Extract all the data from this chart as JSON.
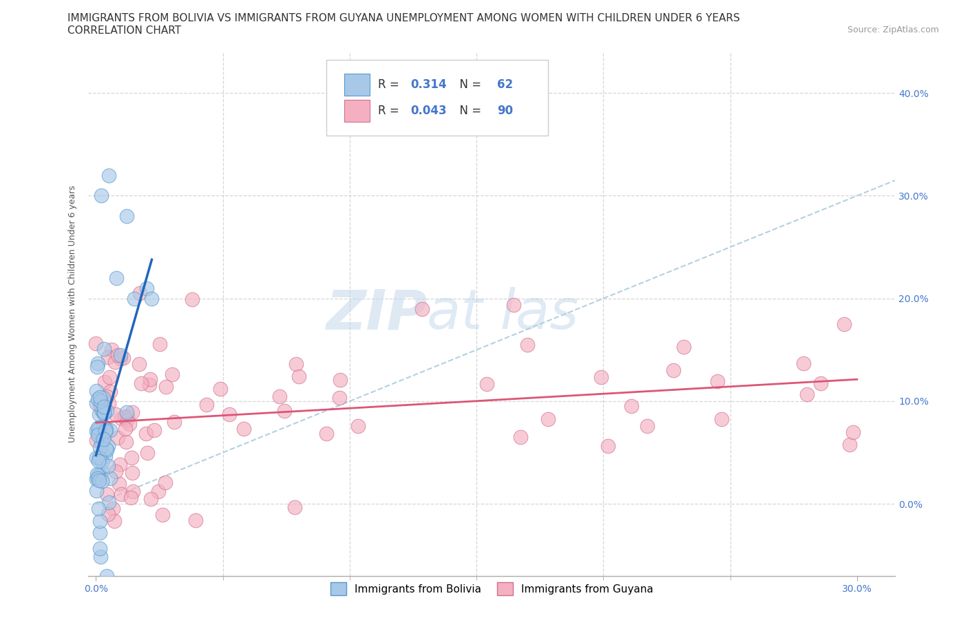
{
  "title_line1": "IMMIGRANTS FROM BOLIVIA VS IMMIGRANTS FROM GUYANA UNEMPLOYMENT AMONG WOMEN WITH CHILDREN UNDER 6 YEARS",
  "title_line2": "CORRELATION CHART",
  "source_text": "Source: ZipAtlas.com",
  "ylabel": "Unemployment Among Women with Children Under 6 years",
  "xlim": [
    -0.003,
    0.315
  ],
  "ylim": [
    -0.07,
    0.44
  ],
  "xticks": [
    0.0,
    0.3
  ],
  "xticklabels": [
    "0.0%",
    "30.0%"
  ],
  "xticks_minor": [
    0.05,
    0.1,
    0.15,
    0.2,
    0.25
  ],
  "yticks": [
    0.0,
    0.1,
    0.2,
    0.3,
    0.4
  ],
  "yticklabels_right": [
    "0.0%",
    "10.0%",
    "20.0%",
    "30.0%",
    "40.0%"
  ],
  "bolivia_color": "#a8c8e8",
  "guyana_color": "#f4b0c0",
  "bolivia_edge": "#5599cc",
  "guyana_edge": "#d07090",
  "bolivia_line_color": "#2266bb",
  "guyana_line_color": "#dd5577",
  "diag_line_color": "#aaccdd",
  "legend_R_bolivia": "0.314",
  "legend_N_bolivia": "62",
  "legend_R_guyana": "0.043",
  "legend_N_guyana": "90",
  "background_color": "#ffffff",
  "grid_color": "#cccccc",
  "tick_label_color": "#4477cc",
  "title_fontsize": 11,
  "axis_label_fontsize": 9,
  "tick_fontsize": 10,
  "legend_fontsize": 12,
  "watermark_color": "#c8dff0"
}
